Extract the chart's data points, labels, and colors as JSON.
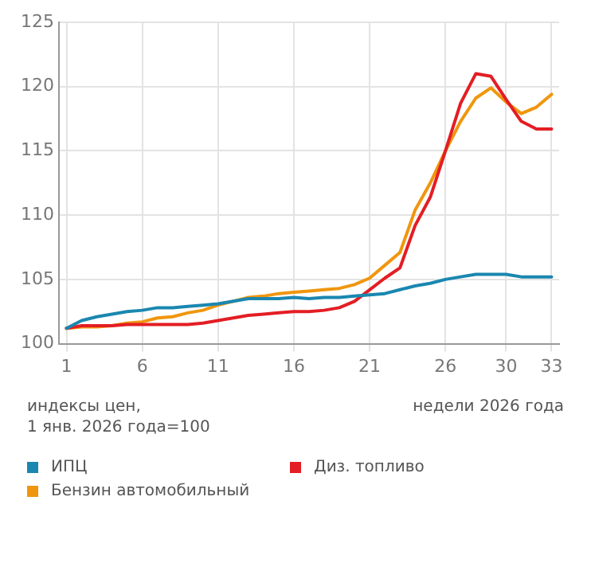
{
  "chart_data": {
    "type": "line",
    "ylabel": "индексы цен,\n1 янв. 2026 года=100",
    "xlabel": "недели 2026 года",
    "x": [
      1,
      2,
      3,
      4,
      5,
      6,
      7,
      8,
      9,
      10,
      11,
      12,
      13,
      14,
      15,
      16,
      17,
      18,
      19,
      20,
      21,
      22,
      23,
      24,
      25,
      26,
      27,
      28,
      29,
      30,
      31,
      32,
      33
    ],
    "xlim": [
      0.5,
      33.5
    ],
    "xticks": [
      1,
      6,
      11,
      16,
      21,
      26,
      30,
      33
    ],
    "ylim": [
      100,
      125
    ],
    "yticks": [
      100,
      105,
      110,
      115,
      120,
      125
    ],
    "grid": true,
    "legend": "bottom",
    "marker": "none",
    "line_style": "solid",
    "series": [
      {
        "name": "ИПЦ",
        "color": "#1a87b0",
        "values": [
          101.2,
          101.8,
          102.1,
          102.3,
          102.5,
          102.6,
          102.8,
          102.8,
          102.9,
          103.0,
          103.1,
          103.3,
          103.5,
          103.5,
          103.5,
          103.6,
          103.5,
          103.6,
          103.6,
          103.7,
          103.8,
          103.9,
          104.2,
          104.5,
          104.7,
          105.0,
          105.2,
          105.4,
          105.4,
          105.4,
          105.2,
          105.2,
          105.2
        ]
      },
      {
        "name": "Диз. топливо",
        "color": "#e31e24",
        "values": [
          101.2,
          101.4,
          101.4,
          101.4,
          101.5,
          101.5,
          101.5,
          101.5,
          101.5,
          101.6,
          101.8,
          102.0,
          102.2,
          102.3,
          102.4,
          102.5,
          102.5,
          102.6,
          102.8,
          103.3,
          104.2,
          105.1,
          105.9,
          109.2,
          111.4,
          115.0,
          118.7,
          121.0,
          120.8,
          119.0,
          117.3,
          116.7,
          116.7
        ]
      },
      {
        "name": "Бензин автомобильный",
        "color": "#f0960e",
        "values": [
          101.2,
          101.3,
          101.3,
          101.4,
          101.6,
          101.7,
          102.0,
          102.1,
          102.4,
          102.6,
          103.0,
          103.3,
          103.6,
          103.7,
          103.9,
          104.0,
          104.1,
          104.2,
          104.3,
          104.6,
          105.1,
          106.1,
          107.1,
          110.4,
          112.5,
          115.0,
          117.3,
          119.1,
          119.9,
          118.8,
          117.9,
          118.4,
          119.4
        ]
      }
    ]
  }
}
